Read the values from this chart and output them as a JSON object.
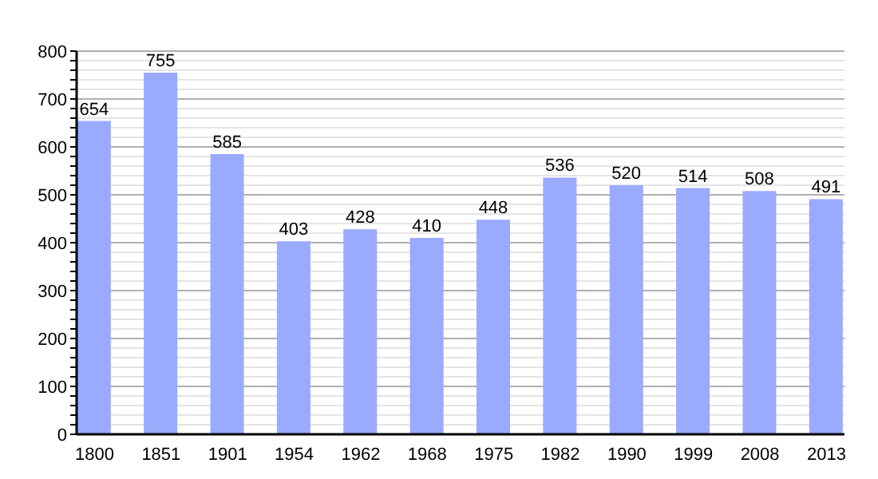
{
  "chart_data": {
    "type": "bar",
    "categories": [
      "1800",
      "1851",
      "1901",
      "1954",
      "1962",
      "1968",
      "1975",
      "1982",
      "1990",
      "1999",
      "2008",
      "2013"
    ],
    "values": [
      654,
      755,
      585,
      403,
      428,
      410,
      448,
      536,
      520,
      514,
      508,
      491
    ],
    "color": "#99aaff",
    "data_labels": true,
    "grid": "y",
    "ylim": [
      0,
      800
    ],
    "yticks": [
      0,
      {
        "value": 20,
        "label": null
      },
      {
        "value": 40,
        "label": null
      },
      {
        "value": 60,
        "label": null
      },
      {
        "value": 80,
        "label": null
      },
      100,
      {
        "value": 120,
        "label": null
      },
      {
        "value": 140,
        "label": null
      },
      {
        "value": 160,
        "label": null
      },
      {
        "value": 180,
        "label": null
      },
      200,
      {
        "value": 220,
        "label": null
      },
      {
        "value": 240,
        "label": null
      },
      {
        "value": 260,
        "label": null
      },
      {
        "value": 280,
        "label": null
      },
      300,
      {
        "value": 320,
        "label": null
      },
      {
        "value": 340,
        "label": null
      },
      {
        "value": 360,
        "label": null
      },
      {
        "value": 380,
        "label": null
      },
      400,
      {
        "value": 420,
        "label": null
      },
      {
        "value": 440,
        "label": null
      },
      {
        "value": 460,
        "label": null
      },
      {
        "value": 480,
        "label": null
      },
      500,
      {
        "value": 520,
        "label": null
      },
      {
        "value": 540,
        "label": null
      },
      {
        "value": 560,
        "label": null
      },
      {
        "value": 580,
        "label": null
      },
      600,
      {
        "value": 620,
        "label": null
      },
      {
        "value": 640,
        "label": null
      },
      {
        "value": 660,
        "label": null
      },
      {
        "value": 680,
        "label": null
      },
      700,
      {
        "value": 720,
        "label": null
      },
      {
        "value": 740,
        "label": null
      },
      {
        "value": 760,
        "label": null
      },
      {
        "value": 780,
        "label": null
      },
      800
    ]
  }
}
